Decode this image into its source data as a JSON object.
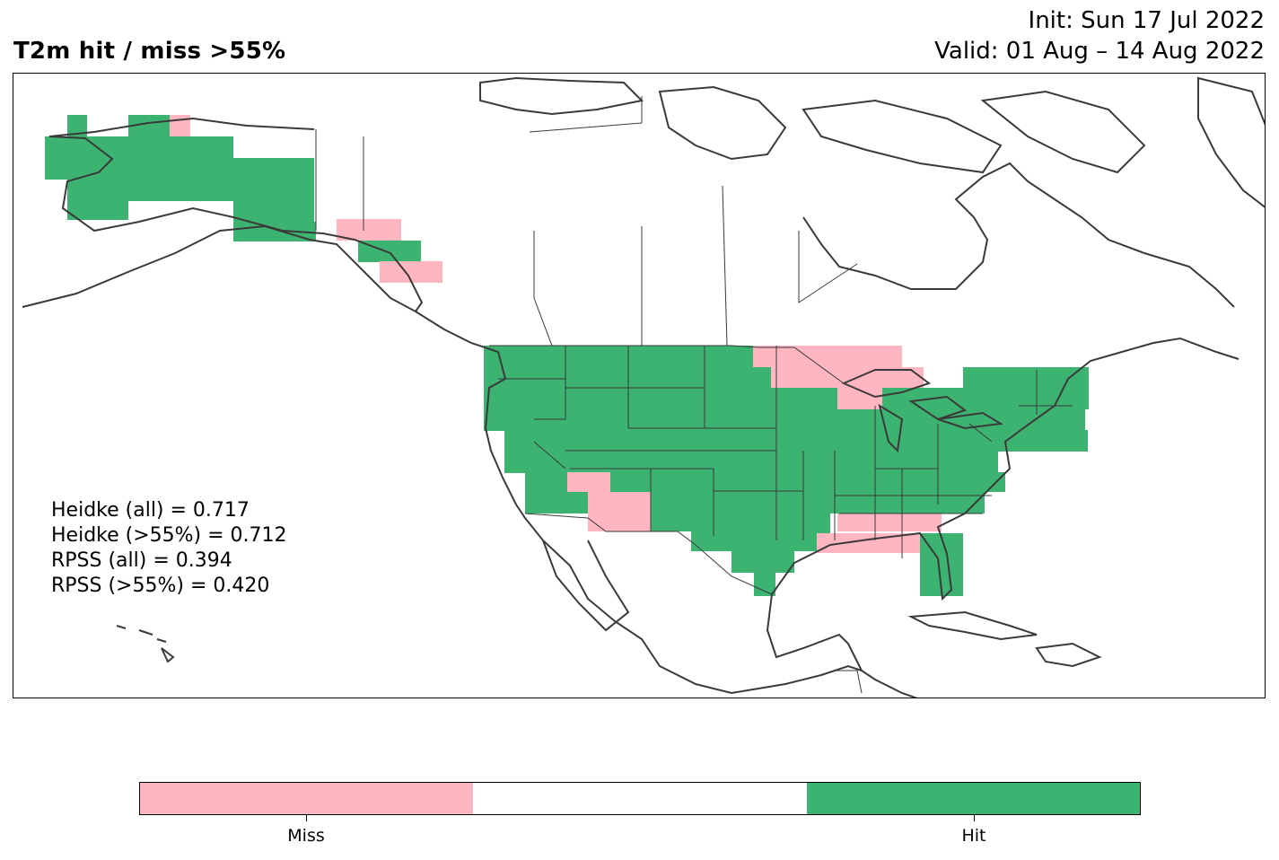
{
  "title": "T2m hit / miss  >55%",
  "init_text": "Init: Sun 17 Jul 2022",
  "valid_text": "Valid: 01 Aug – 14 Aug 2022",
  "stats": [
    "Heidke (all) = 0.717",
    "Heidke (>55%) = 0.712",
    "RPSS (all) = 0.394",
    "RPSS (>55%) = 0.420"
  ],
  "colors": {
    "miss": "#ffb6c1",
    "neutral": "#ffffff",
    "hit": "#3cb371",
    "border": "#3a3a3a"
  },
  "legend": {
    "ticks": [
      {
        "label": "Miss",
        "position": 0.1667
      },
      {
        "label": "Hit",
        "position": 0.8333
      }
    ]
  }
}
